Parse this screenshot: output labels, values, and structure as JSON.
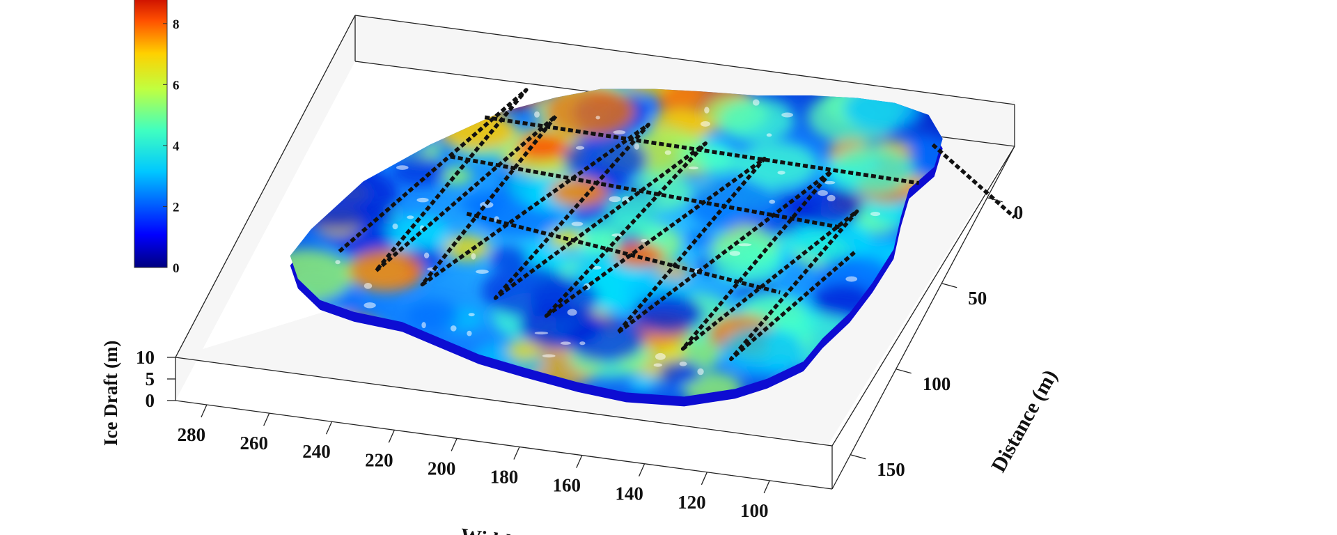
{
  "chart_data": {
    "type": "surface",
    "zlabel": "Ice Draft (m)",
    "xlabel": "Width (m)",
    "ylabel": "Distance (m)",
    "x_ticks": [
      "280",
      "260",
      "240",
      "220",
      "200",
      "180",
      "160",
      "140",
      "120",
      "100"
    ],
    "y_ticks": [
      "0",
      "50",
      "100",
      "150"
    ],
    "z_ticks": [
      "0",
      "5",
      "10"
    ],
    "colorbar": {
      "ticks": [
        "0",
        "2",
        "4",
        "6",
        "8"
      ],
      "range": [
        0,
        9
      ],
      "colormap": "jet"
    },
    "xlim": [
      80,
      290
    ],
    "ylim": [
      -30,
      170
    ],
    "zlim": [
      0,
      10
    ],
    "track": "black dotted survey path (lawnmower pattern) drawn over the surface",
    "colors": {
      "low": "#00008f",
      "mid": "#00ffff",
      "high": "#ff0000",
      "track": "#111111"
    }
  }
}
